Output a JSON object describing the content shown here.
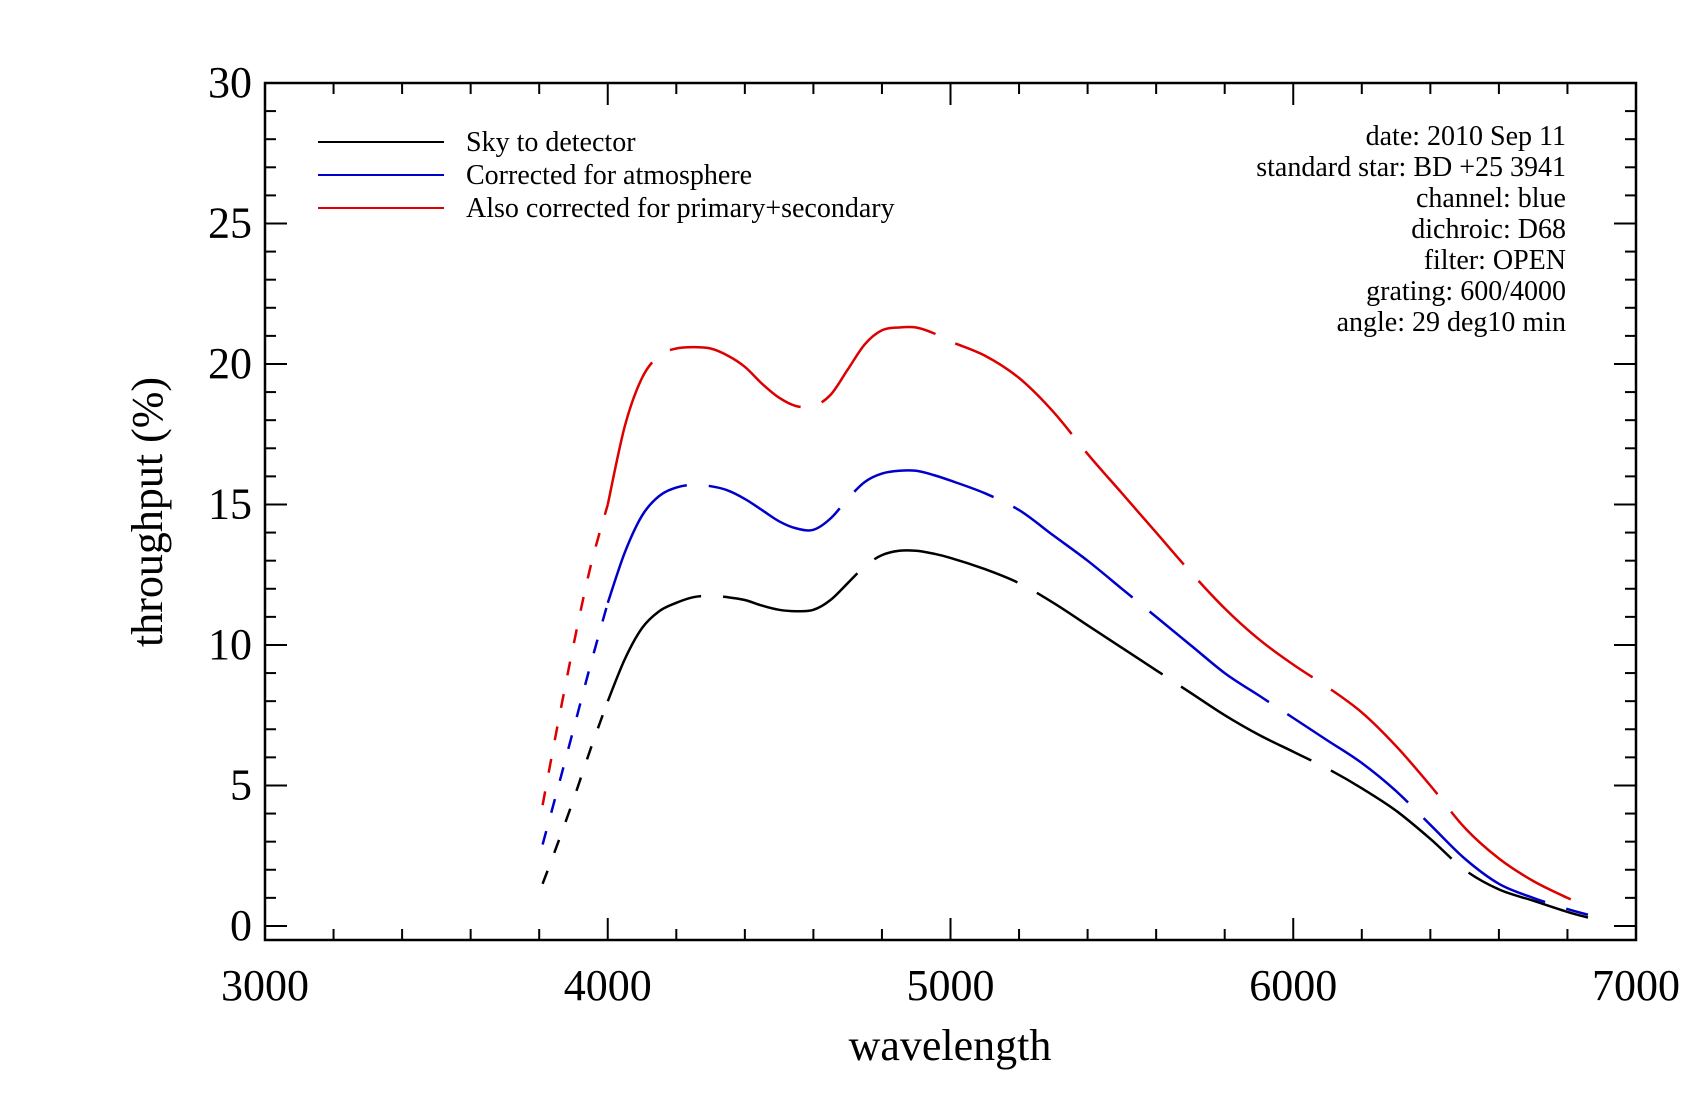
{
  "chart_data": {
    "type": "line",
    "xlabel": "wavelength",
    "ylabel": "throughput (%)",
    "xlim": [
      3000,
      7000
    ],
    "ylim": [
      -0.5,
      30
    ],
    "x_ticks": [
      3000,
      4000,
      5000,
      6000,
      7000
    ],
    "y_ticks": [
      0,
      5,
      10,
      15,
      20,
      25,
      30
    ],
    "x_tick_labels": [
      "3000",
      "4000",
      "5000",
      "6000",
      "7000"
    ],
    "y_tick_labels": [
      "0",
      "5",
      "10",
      "15",
      "20",
      "25",
      "30"
    ],
    "grid": false,
    "legend_position": "top-left",
    "series": [
      {
        "name": "Sky to detector",
        "color": "#000000",
        "x": [
          3810,
          3850,
          3900,
          3950,
          4000,
          4050,
          4100,
          4150,
          4200,
          4250,
          4300,
          4350,
          4400,
          4450,
          4500,
          4550,
          4600,
          4650,
          4700,
          4750,
          4800,
          4850,
          4900,
          4950,
          5000,
          5100,
          5200,
          5300,
          5400,
          5500,
          5600,
          5700,
          5800,
          5900,
          6000,
          6100,
          6200,
          6300,
          6400,
          6500,
          6600,
          6700,
          6800,
          6860
        ],
        "values": [
          1.5,
          2.8,
          4.5,
          6.3,
          8.0,
          9.5,
          10.6,
          11.2,
          11.5,
          11.7,
          11.75,
          11.7,
          11.6,
          11.4,
          11.25,
          11.2,
          11.25,
          11.6,
          12.2,
          12.8,
          13.2,
          13.35,
          13.35,
          13.25,
          13.1,
          12.7,
          12.2,
          11.5,
          10.7,
          9.9,
          9.1,
          8.3,
          7.5,
          6.8,
          6.2,
          5.6,
          4.9,
          4.1,
          3.1,
          2.0,
          1.3,
          0.9,
          0.5,
          0.3
        ]
      },
      {
        "name": "Corrected for atmosphere",
        "color": "#0000cc",
        "x": [
          3810,
          3850,
          3900,
          3950,
          4000,
          4050,
          4100,
          4150,
          4200,
          4250,
          4300,
          4350,
          4400,
          4450,
          4500,
          4550,
          4600,
          4650,
          4700,
          4750,
          4800,
          4850,
          4900,
          4950,
          5000,
          5100,
          5200,
          5300,
          5400,
          5500,
          5600,
          5700,
          5800,
          5900,
          6000,
          6100,
          6200,
          6300,
          6400,
          6500,
          6600,
          6700,
          6800,
          6860
        ],
        "values": [
          2.9,
          4.7,
          7.0,
          9.3,
          11.5,
          13.3,
          14.6,
          15.3,
          15.6,
          15.7,
          15.65,
          15.5,
          15.2,
          14.8,
          14.4,
          14.15,
          14.1,
          14.5,
          15.2,
          15.8,
          16.1,
          16.2,
          16.2,
          16.05,
          15.85,
          15.4,
          14.8,
          13.9,
          13.0,
          12.0,
          11.0,
          10.0,
          9.0,
          8.2,
          7.4,
          6.6,
          5.8,
          4.8,
          3.6,
          2.4,
          1.5,
          1.0,
          0.6,
          0.4
        ]
      },
      {
        "name": "Also corrected for primary+secondary",
        "color": "#dd0000",
        "x": [
          3810,
          3850,
          3900,
          3950,
          4000,
          4050,
          4100,
          4150,
          4200,
          4250,
          4300,
          4350,
          4400,
          4450,
          4500,
          4550,
          4600,
          4650,
          4700,
          4750,
          4800,
          4850,
          4900,
          4950,
          5000,
          5100,
          5200,
          5300,
          5400,
          5500,
          5600,
          5700,
          5800,
          5900,
          6000,
          6100,
          6200,
          6300,
          6400,
          6500,
          6600,
          6700,
          6800,
          6860
        ],
        "values": [
          4.3,
          6.9,
          10.0,
          12.8,
          15.0,
          17.8,
          19.5,
          20.3,
          20.55,
          20.6,
          20.55,
          20.3,
          19.9,
          19.3,
          18.8,
          18.5,
          18.5,
          18.9,
          19.8,
          20.7,
          21.2,
          21.3,
          21.3,
          21.1,
          20.8,
          20.3,
          19.5,
          18.3,
          16.8,
          15.4,
          14.0,
          12.6,
          11.3,
          10.2,
          9.3,
          8.5,
          7.6,
          6.4,
          5.0,
          3.5,
          2.4,
          1.6,
          1.0,
          0.7
        ]
      }
    ]
  },
  "legend": [
    {
      "label": "Sky to detector",
      "color": "#000000"
    },
    {
      "label": "Corrected for atmosphere",
      "color": "#0000cc"
    },
    {
      "label": "Also corrected for primary+secondary",
      "color": "#dd0000"
    }
  ],
  "info_lines": [
    "date: 2010 Sep 11",
    "standard star: BD +25 3941",
    "channel: blue",
    "dichroic: D68",
    "filter: OPEN",
    "grating: 600/4000",
    "angle: 29 deg10 min"
  ]
}
